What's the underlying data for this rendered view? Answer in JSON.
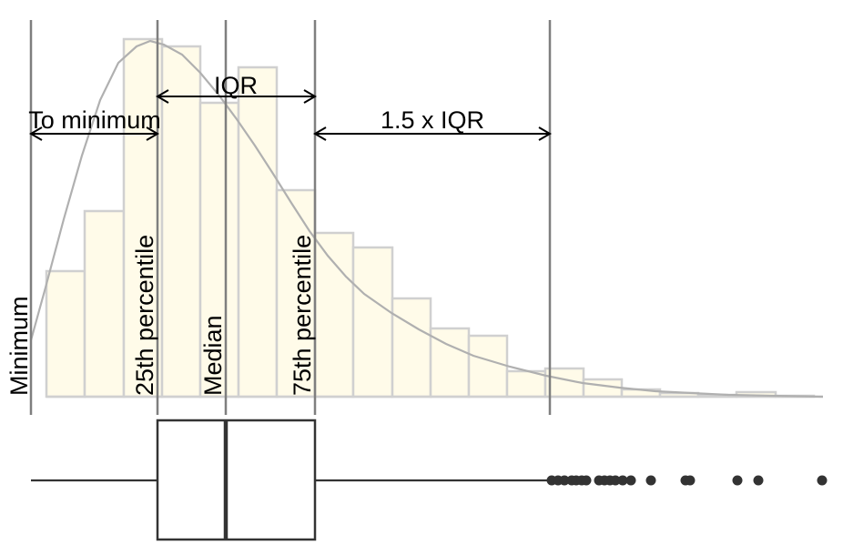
{
  "chart_data": {
    "type": "histogram-boxplot",
    "title": "",
    "xlabel": "",
    "ylabel": "",
    "x_range": [
      0,
      926
    ],
    "hist_bins": [
      {
        "x0": 51,
        "x1": 93,
        "count": 138
      },
      {
        "x0": 93,
        "x1": 136,
        "count": 204
      },
      {
        "x0": 136,
        "x1": 178,
        "count": 393
      },
      {
        "x0": 178,
        "x1": 220,
        "count": 385
      },
      {
        "x0": 220,
        "x1": 262,
        "count": 323
      },
      {
        "x0": 262,
        "x1": 304,
        "count": 362
      },
      {
        "x0": 304,
        "x1": 346,
        "count": 227
      },
      {
        "x0": 346,
        "x1": 388,
        "count": 180
      },
      {
        "x0": 388,
        "x1": 431,
        "count": 164
      },
      {
        "x0": 431,
        "x1": 473,
        "count": 108
      },
      {
        "x0": 473,
        "x1": 515,
        "count": 75
      },
      {
        "x0": 515,
        "x1": 557,
        "count": 67
      },
      {
        "x0": 557,
        "x1": 599,
        "count": 28
      },
      {
        "x0": 599,
        "x1": 641,
        "count": 31
      },
      {
        "x0": 641,
        "x1": 683,
        "count": 19
      },
      {
        "x0": 683,
        "x1": 725,
        "count": 8
      },
      {
        "x0": 725,
        "x1": 767,
        "count": 4
      },
      {
        "x0": 767,
        "x1": 809,
        "count": 2
      },
      {
        "x0": 809,
        "x1": 852,
        "count": 5
      },
      {
        "x0": 852,
        "x1": 894,
        "count": 1
      }
    ],
    "density_curve": [
      [
        34,
        62
      ],
      [
        50,
        120
      ],
      [
        70,
        195
      ],
      [
        90,
        265
      ],
      [
        110,
        326
      ],
      [
        130,
        367
      ],
      [
        150,
        385
      ],
      [
        165,
        391
      ],
      [
        180,
        387
      ],
      [
        200,
        376
      ],
      [
        220,
        356
      ],
      [
        240,
        332
      ],
      [
        260,
        305
      ],
      [
        280,
        276
      ],
      [
        300,
        245
      ],
      [
        320,
        213
      ],
      [
        340,
        182
      ],
      [
        360,
        155
      ],
      [
        380,
        132
      ],
      [
        400,
        113
      ],
      [
        430,
        92
      ],
      [
        460,
        74
      ],
      [
        490,
        58
      ],
      [
        520,
        45
      ],
      [
        560,
        33
      ],
      [
        600,
        23
      ],
      [
        640,
        15
      ],
      [
        680,
        10
      ],
      [
        720,
        6
      ],
      [
        760,
        4
      ],
      [
        800,
        2
      ],
      [
        850,
        1
      ],
      [
        904,
        0
      ]
    ],
    "boxplot": {
      "minimum": 34,
      "q1": 173,
      "median": 248,
      "q3": 346,
      "whisker_high": 604,
      "outliers": [
        606,
        613,
        620,
        628,
        633,
        639,
        644,
        658,
        664,
        670,
        676,
        684,
        693,
        715,
        753,
        758,
        810,
        833,
        903
      ]
    },
    "vertical_markers": [
      34,
      173,
      248,
      346,
      604
    ],
    "labels": {
      "minimum": "Minimum",
      "p25": "25th percentile",
      "median": "Median",
      "p75": "75th percentile",
      "iqr": "IQR",
      "to_minimum": "To minimum",
      "iqr_15": "1.5 x IQR"
    },
    "colors": {
      "bar_fill": "#fffbe9",
      "bar_stroke": "#d0d0d0",
      "curve": "#b0b0b0",
      "marker_line": "#7f7f7f",
      "box": "#333333",
      "text": "#000000"
    }
  }
}
